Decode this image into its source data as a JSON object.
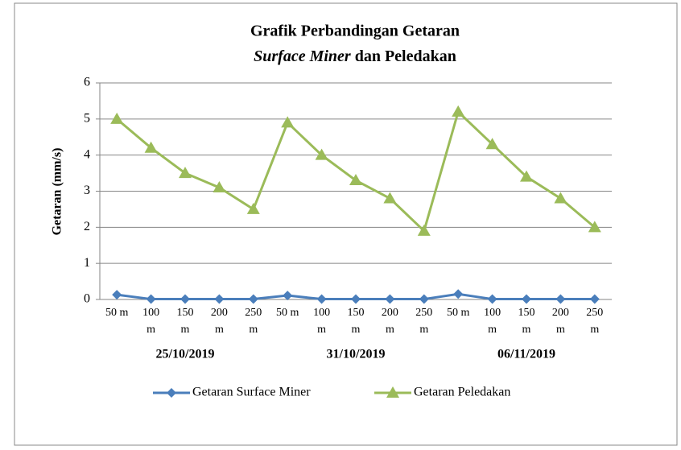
{
  "chart_data": {
    "type": "line",
    "title": "Grafik Perbandingan Getaran",
    "subtitle": [
      "Surface Miner",
      "dan Peledakan"
    ],
    "y_label": "Getaran (mm/s)",
    "categories": [
      "50 m",
      "100 m",
      "150 m",
      "200 m",
      "250 m",
      "50 m",
      "100 m",
      "150 m",
      "200 m",
      "250 m",
      "50 m",
      "100 m",
      "150 m",
      "200 m",
      "250 m"
    ],
    "groups": [
      "25/10/2019",
      "31/10/2019",
      "06/11/2019"
    ],
    "series": [
      {
        "name": "Getaran Surface Miner",
        "color": "#4a7ebb",
        "marker": "diamond",
        "values": [
          0.13,
          0.01,
          0.01,
          0.01,
          0.01,
          0.11,
          0.01,
          0.01,
          0.01,
          0.01,
          0.15,
          0.01,
          0.01,
          0.01,
          0.01
        ]
      },
      {
        "name": "Getaran Peledakan",
        "color": "#9bbb59",
        "marker": "triangle",
        "values": [
          5,
          4.2,
          3.5,
          3.1,
          2.5,
          4.9,
          4,
          3.3,
          2.8,
          1.9,
          5.2,
          4.3,
          3.4,
          2.8,
          2
        ]
      }
    ],
    "ylim": [
      0,
      6
    ],
    "yticks": [
      0,
      1,
      2,
      3,
      4,
      5,
      6
    ],
    "grid": true,
    "legend": "bottom"
  }
}
